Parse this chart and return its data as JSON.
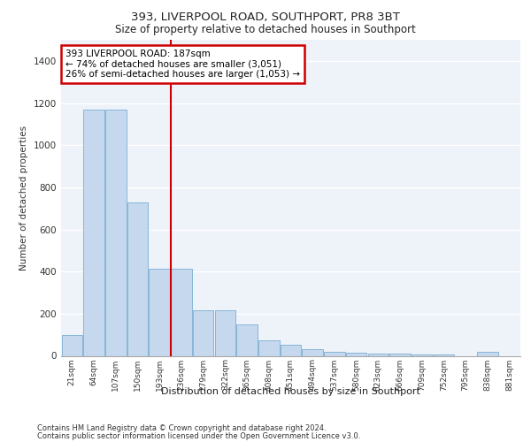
{
  "title1": "393, LIVERPOOL ROAD, SOUTHPORT, PR8 3BT",
  "title2": "Size of property relative to detached houses in Southport",
  "xlabel": "Distribution of detached houses by size in Southport",
  "ylabel": "Number of detached properties",
  "footer1": "Contains HM Land Registry data © Crown copyright and database right 2024.",
  "footer2": "Contains public sector information licensed under the Open Government Licence v3.0.",
  "annotation_line1": "393 LIVERPOOL ROAD: 187sqm",
  "annotation_line2": "← 74% of detached houses are smaller (3,051)",
  "annotation_line3": "26% of semi-detached houses are larger (1,053) →",
  "bar_color": "#c5d8ed",
  "bar_edge_color": "#7aafd4",
  "marker_color": "#cc0000",
  "annotation_box_color": "#cc0000",
  "background_color": "#eef2f9",
  "categories": [
    "21sqm",
    "64sqm",
    "107sqm",
    "150sqm",
    "193sqm",
    "236sqm",
    "279sqm",
    "322sqm",
    "365sqm",
    "408sqm",
    "451sqm",
    "494sqm",
    "537sqm",
    "580sqm",
    "623sqm",
    "666sqm",
    "709sqm",
    "752sqm",
    "795sqm",
    "838sqm",
    "881sqm"
  ],
  "values": [
    100,
    1170,
    1170,
    730,
    415,
    415,
    215,
    215,
    148,
    75,
    52,
    30,
    20,
    15,
    12,
    12,
    5,
    5,
    0,
    20,
    0
  ],
  "ylim": [
    0,
    1500
  ],
  "yticks": [
    0,
    200,
    400,
    600,
    800,
    1000,
    1200,
    1400
  ],
  "vline_x": 4.5
}
